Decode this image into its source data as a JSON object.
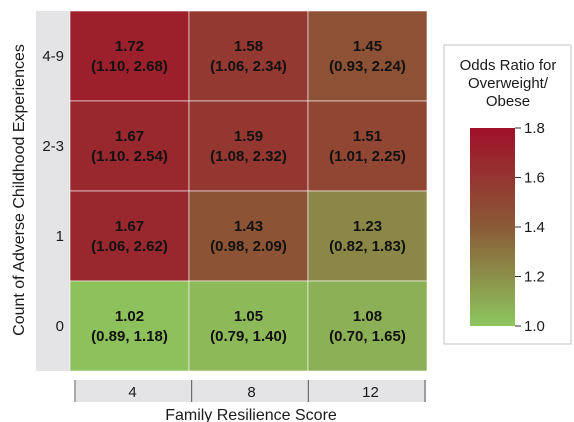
{
  "chart_data": {
    "type": "heatmap",
    "xlabel": "Family Resilience Score",
    "ylabel": "Count of Adverse Childhood Experiences",
    "x_categories": [
      "4",
      "8",
      "12"
    ],
    "y_categories": [
      "4-9",
      "2-3",
      "1",
      "0"
    ],
    "cells": [
      [
        {
          "value": 1.72,
          "ci": "(1.10, 2.68)"
        },
        {
          "value": 1.58,
          "ci": "(1.06, 2.34)"
        },
        {
          "value": 1.45,
          "ci": "(0.93, 2.24)"
        }
      ],
      [
        {
          "value": 1.67,
          "ci": "(1.10. 2.54)"
        },
        {
          "value": 1.59,
          "ci": "(1.08, 2.32)"
        },
        {
          "value": 1.51,
          "ci": "(1.01, 2.25)"
        }
      ],
      [
        {
          "value": 1.67,
          "ci": "(1.06, 2.62)"
        },
        {
          "value": 1.43,
          "ci": "(0.98, 2.09)"
        },
        {
          "value": 1.23,
          "ci": "(0.82, 1.83)"
        }
      ],
      [
        {
          "value": 1.02,
          "ci": "(0.89, 1.18)"
        },
        {
          "value": 1.05,
          "ci": "(0.79, 1.40)"
        },
        {
          "value": 1.08,
          "ci": "(0.70, 1.65)"
        }
      ]
    ],
    "colorbar": {
      "title_lines": [
        "Odds Ratio for",
        "Overweight/",
        "Obese"
      ],
      "min": 1.0,
      "max": 1.8,
      "ticks": [
        "1.0",
        "1.2",
        "1.4",
        "1.6",
        "1.8"
      ],
      "low_color": "#8dc65d",
      "high_color": "#a0102a"
    }
  }
}
